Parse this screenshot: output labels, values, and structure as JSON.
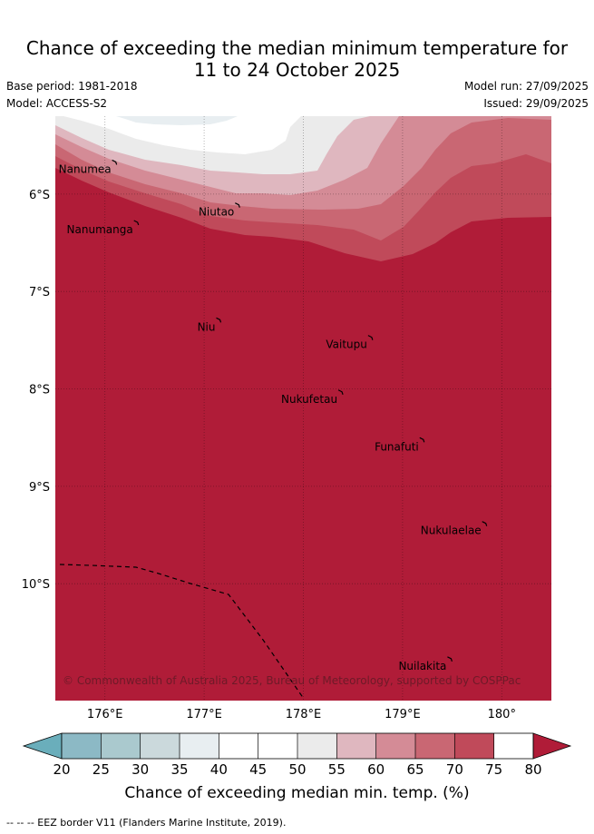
{
  "title": {
    "line1": "Chance of exceeding the median minimum temperature for",
    "line2": "11 to 24 October 2025"
  },
  "meta": {
    "base_period": "Base period: 1981-2018",
    "model": "Model: ACCESS-S2",
    "model_run": "Model run: 27/09/2025",
    "issued": "Issued: 29/09/2025"
  },
  "map": {
    "lon_range": [
      175.5,
      180.5
    ],
    "lat_range": [
      -11.2,
      -5.2
    ],
    "lon_ticks": [
      176,
      177,
      178,
      179,
      180
    ],
    "lon_tick_labels": [
      "176°E",
      "177°E",
      "178°E",
      "179°E",
      "180°"
    ],
    "lat_ticks": [
      -6,
      -7,
      -8,
      -9,
      -10
    ],
    "lat_tick_labels": [
      "6°S",
      "7°S",
      "8°S",
      "9°S",
      "10°S"
    ],
    "places": [
      {
        "name": "Nanumea",
        "lon": 176.1,
        "lat": -5.67
      },
      {
        "name": "Nanumanga",
        "lon": 176.32,
        "lat": -6.29
      },
      {
        "name": "Niutao",
        "lon": 177.34,
        "lat": -6.11
      },
      {
        "name": "Niu",
        "lon": 177.15,
        "lat": -7.29
      },
      {
        "name": "Vaitupu",
        "lon": 178.68,
        "lat": -7.47
      },
      {
        "name": "Nukufetau",
        "lon": 178.38,
        "lat": -8.03
      },
      {
        "name": "Funafuti",
        "lon": 179.2,
        "lat": -8.52
      },
      {
        "name": "Nukulaelae",
        "lon": 179.83,
        "lat": -9.38
      },
      {
        "name": "Nuilakita",
        "lon": 179.48,
        "lat": -10.77
      }
    ],
    "copyright": "© Commonwealth of Australia 2025, Bureau of Meteorology, supported by COSPPac"
  },
  "colorbar": {
    "ticks": [
      "20",
      "25",
      "30",
      "35",
      "40",
      "45",
      "50",
      "55",
      "60",
      "65",
      "70",
      "75",
      "80"
    ],
    "colors": [
      "#6aaebb",
      "#8cb9c5",
      "#aac9ce",
      "#cbd9dc",
      "#e8eef1",
      "#ffffff",
      "#ffffff",
      "#ebebeb",
      "#dfb7bf",
      "#d48b96",
      "#c96773",
      "#c04a5a",
      "#b01c38"
    ],
    "label": "Chance of exceeding median min. temp. (%)"
  },
  "footer": {
    "eez": "--  --  -- EEZ border V11 (Flanders Marine Institute, 2019)."
  }
}
